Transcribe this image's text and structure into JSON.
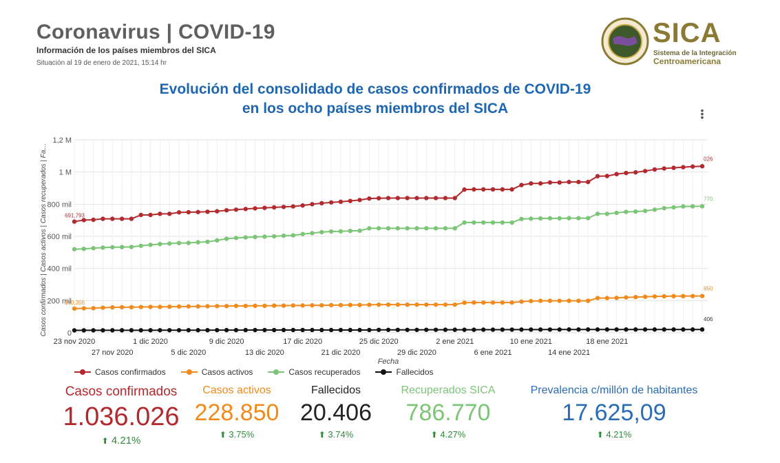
{
  "header": {
    "title": "Coronavirus | COVID-19",
    "subtitle": "Información de los países miembros del SICA",
    "situation": "Situación al 19 de enero de 2021, 15:14 hr"
  },
  "logo": {
    "name": "SICA",
    "line1": "Sistema de la Integración",
    "line2": "Centroamericana",
    "colors": {
      "gold": "#8a7a35",
      "green": "#3e5a2a"
    }
  },
  "chart_title": {
    "line1": "Evolución del consolidado de casos confirmados de COVID-19",
    "line2": "en los ocho países miembros del SICA"
  },
  "menu_icon": "kebab-menu-icon",
  "chart_data": {
    "type": "line",
    "xlabel": "Fecha",
    "ylabel": "Casos confirmados | Casos activos | Casos recuperados | Fa…",
    "ylim": [
      0,
      1200000
    ],
    "yticks": [
      "0",
      "200 mil",
      "400 mil",
      "600 mil",
      "800 mil",
      "1 M",
      "1,2 M"
    ],
    "x_start_label": "23 nov 2020",
    "xticks_row1": [
      "23 nov 2020",
      "1 dic 2020",
      "9 dic 2020",
      "17 dic 2020",
      "25 dic 2020",
      "2 ene 2021",
      "10 ene 2021",
      "18 ene 2021"
    ],
    "xticks_row2": [
      "27 nov 2020",
      "5 dic 2020",
      "13 dic 2020",
      "21 dic 2020",
      "29 dic 2020",
      "6 ene 2021",
      "14 ene 2021"
    ],
    "xtick_row1_index": [
      0,
      8,
      16,
      24,
      32,
      40,
      48,
      56
    ],
    "xtick_row2_index": [
      4,
      12,
      20,
      28,
      36,
      44,
      52
    ],
    "grid": true,
    "legend_position": "bottom-left",
    "series": [
      {
        "name": "Casos confirmados",
        "color": "#b22a2e",
        "values": [
          691793,
          701000,
          703000,
          709000,
          709000,
          709000,
          709000,
          733000,
          733000,
          740000,
          740000,
          749000,
          750000,
          751000,
          753000,
          756000,
          762000,
          766000,
          770000,
          774000,
          777000,
          780000,
          783000,
          786000,
          792000,
          800000,
          806000,
          811000,
          815000,
          820000,
          826000,
          835000,
          837000,
          838000,
          838000,
          838000,
          838000,
          838000,
          838000,
          838000,
          838000,
          891000,
          892000,
          892000,
          892000,
          892000,
          892000,
          919000,
          929000,
          929000,
          935000,
          935000,
          938000,
          938000,
          938000,
          974000,
          975000,
          987000,
          994000,
          998000,
          1006000,
          1016000,
          1022000,
          1026000,
          1030000,
          1034000,
          1036026
        ]
      },
      {
        "name": "Casos activos",
        "color": "#f18a1c",
        "values": [
          150356,
          152000,
          153000,
          156000,
          158000,
          159000,
          159000,
          160000,
          161000,
          161000,
          162000,
          163000,
          164000,
          164000,
          165000,
          166000,
          166000,
          167000,
          167000,
          168000,
          168000,
          169000,
          169000,
          170000,
          170000,
          171000,
          171000,
          172000,
          172000,
          173000,
          173000,
          174000,
          175000,
          175000,
          175000,
          175000,
          175000,
          175000,
          175000,
          175000,
          175000,
          187000,
          188000,
          188000,
          188000,
          188000,
          188000,
          194000,
          197000,
          199000,
          199000,
          199000,
          199000,
          199000,
          199000,
          216000,
          216000,
          217000,
          220000,
          222000,
          224000,
          226000,
          227000,
          228000,
          228000,
          228500,
          228850
        ]
      },
      {
        "name": "Casos recuperados",
        "color": "#7cc576",
        "values": [
          520000,
          522000,
          526000,
          530000,
          532000,
          533000,
          534000,
          541000,
          547000,
          552000,
          555000,
          558000,
          559000,
          563000,
          566000,
          575000,
          585000,
          590000,
          593000,
          596000,
          598000,
          600000,
          604000,
          606000,
          614000,
          620000,
          626000,
          630000,
          631000,
          634000,
          635000,
          650000,
          650000,
          650000,
          650000,
          650000,
          650000,
          650000,
          650000,
          650000,
          650000,
          686000,
          686000,
          686000,
          686000,
          686000,
          686000,
          708000,
          710000,
          711000,
          712000,
          712000,
          713000,
          713000,
          713000,
          740000,
          740000,
          746000,
          752000,
          754000,
          758000,
          766000,
          775000,
          780000,
          786000,
          786500,
          786770
        ]
      },
      {
        "name": "Fallecidos",
        "color": "#111111",
        "values": [
          15145,
          15305,
          15405,
          15455,
          15505,
          15585,
          15655,
          15715,
          15785,
          15865,
          15985,
          16016,
          16126,
          16218,
          16315,
          16406,
          16588,
          16714,
          16846,
          16946,
          16944,
          16947,
          17297,
          17297,
          17297,
          17297,
          17297,
          17297,
          17297,
          17298,
          17298,
          17298,
          18145,
          18145,
          18145,
          18145,
          18145,
          18538,
          18648,
          18738,
          18738,
          18738,
          18739,
          19258,
          19350,
          19534,
          19679,
          19786,
          19866,
          19901,
          20120,
          20229,
          20329,
          20400,
          20402,
          20404,
          20405,
          20405,
          20406,
          20406,
          20406,
          20406,
          20406,
          20406,
          20406,
          20406,
          20406
        ]
      }
    ],
    "label_samples": {
      "confirmados_first": "691,793",
      "confirmados_last": "026",
      "activos_first": "150,356",
      "activos_last": "850",
      "recuperados_last": "770",
      "fallecidos_last": "406"
    }
  },
  "legend": [
    {
      "name": "Casos confirmados",
      "color": "#b22a2e"
    },
    {
      "name": "Casos activos",
      "color": "#f18a1c"
    },
    {
      "name": "Casos recuperados",
      "color": "#7cc576"
    },
    {
      "name": "Fallecidos",
      "color": "#111111"
    }
  ],
  "kpis": [
    {
      "label": "Casos confirmados",
      "value": "1.036.026",
      "change": "4.21%",
      "color": "#b22a2e"
    },
    {
      "label": "Casos activos",
      "value": "228.850",
      "change": "3.75%",
      "color": "#f18a1c"
    },
    {
      "label": "Fallecidos",
      "value": "20.406",
      "change": "3.74%",
      "color": "#222222"
    },
    {
      "label": "Recuperados SICA",
      "value": "786.770",
      "change": "4.27%",
      "color": "#7cc576"
    },
    {
      "label": "Prevalencia c/millón de habitantes",
      "value": "17.625,09",
      "change": "4.21%",
      "color": "#2b6cb5"
    }
  ],
  "up_arrow_icon": "arrow-up-icon"
}
